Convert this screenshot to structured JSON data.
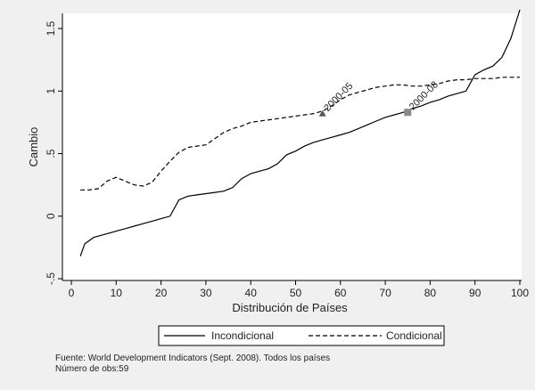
{
  "chart_data": {
    "type": "line",
    "xlabel": "Distribución de Países",
    "ylabel": "Cambio",
    "xlim": [
      0,
      100
    ],
    "ylim": [
      -0.5,
      1.6
    ],
    "x_ticks": [
      0,
      10,
      20,
      30,
      40,
      50,
      60,
      70,
      80,
      90,
      100
    ],
    "x_tick_labels": [
      "0",
      "10",
      "20",
      "30",
      "40",
      "50",
      "60",
      "70",
      "80",
      "90",
      "100"
    ],
    "y_ticks": [
      -0.5,
      0,
      0.5,
      1,
      1.5
    ],
    "y_tick_labels": [
      "-.5",
      "0",
      ".5",
      "1",
      "1.5"
    ],
    "grid": false,
    "legend_position": "bottom",
    "series": [
      {
        "name": "Incondicional",
        "style": "solid",
        "color": "#000000",
        "x": [
          2,
          3,
          5,
          8,
          10,
          12,
          14,
          16,
          18,
          20,
          22,
          24,
          26,
          28,
          30,
          32,
          34,
          36,
          38,
          40,
          42,
          44,
          46,
          48,
          50,
          52,
          54,
          56,
          58,
          60,
          62,
          64,
          66,
          68,
          70,
          72,
          74,
          76,
          78,
          80,
          82,
          84,
          86,
          88,
          90,
          92,
          94,
          96,
          98,
          100
        ],
        "y": [
          -0.32,
          -0.22,
          -0.17,
          -0.14,
          -0.12,
          -0.1,
          -0.08,
          -0.06,
          -0.04,
          -0.02,
          0.0,
          0.13,
          0.16,
          0.17,
          0.18,
          0.19,
          0.2,
          0.23,
          0.3,
          0.34,
          0.36,
          0.38,
          0.42,
          0.49,
          0.52,
          0.56,
          0.59,
          0.61,
          0.63,
          0.65,
          0.67,
          0.7,
          0.73,
          0.76,
          0.79,
          0.81,
          0.83,
          0.86,
          0.88,
          0.91,
          0.93,
          0.96,
          0.98,
          1.0,
          1.13,
          1.17,
          1.2,
          1.27,
          1.42,
          1.65
        ]
      },
      {
        "name": "Condicional",
        "style": "dashed",
        "color": "#000000",
        "x": [
          2,
          4,
          6,
          8,
          10,
          12,
          14,
          16,
          18,
          20,
          22,
          24,
          26,
          28,
          30,
          32,
          34,
          36,
          38,
          40,
          42,
          44,
          46,
          48,
          50,
          52,
          54,
          56,
          58,
          60,
          62,
          64,
          66,
          68,
          70,
          72,
          74,
          76,
          78,
          80,
          82,
          84,
          86,
          88,
          90,
          92,
          94,
          96,
          98,
          100
        ],
        "y": [
          0.21,
          0.21,
          0.22,
          0.28,
          0.31,
          0.28,
          0.25,
          0.24,
          0.27,
          0.36,
          0.44,
          0.51,
          0.55,
          0.56,
          0.57,
          0.62,
          0.67,
          0.7,
          0.72,
          0.75,
          0.76,
          0.77,
          0.78,
          0.79,
          0.8,
          0.81,
          0.82,
          0.84,
          0.88,
          0.93,
          0.97,
          0.99,
          1.01,
          1.03,
          1.04,
          1.05,
          1.05,
          1.04,
          1.04,
          1.05,
          1.06,
          1.08,
          1.09,
          1.09,
          1.1,
          1.1,
          1.1,
          1.11,
          1.11,
          1.11
        ]
      }
    ],
    "annotations": [
      {
        "label": "2000-05",
        "x": 56,
        "y": 0.82,
        "marker": "triangle",
        "color": "#555555"
      },
      {
        "label": "2000-08",
        "x": 75,
        "y": 0.83,
        "marker": "square",
        "color": "#888888"
      }
    ],
    "plot_background": "#ffffff",
    "page_background": "#f0f0f0"
  },
  "footnote": {
    "source": "Fuente: World Development Indicators (Sept. 2008). Todos los países",
    "obs": "Número de obs:59"
  }
}
